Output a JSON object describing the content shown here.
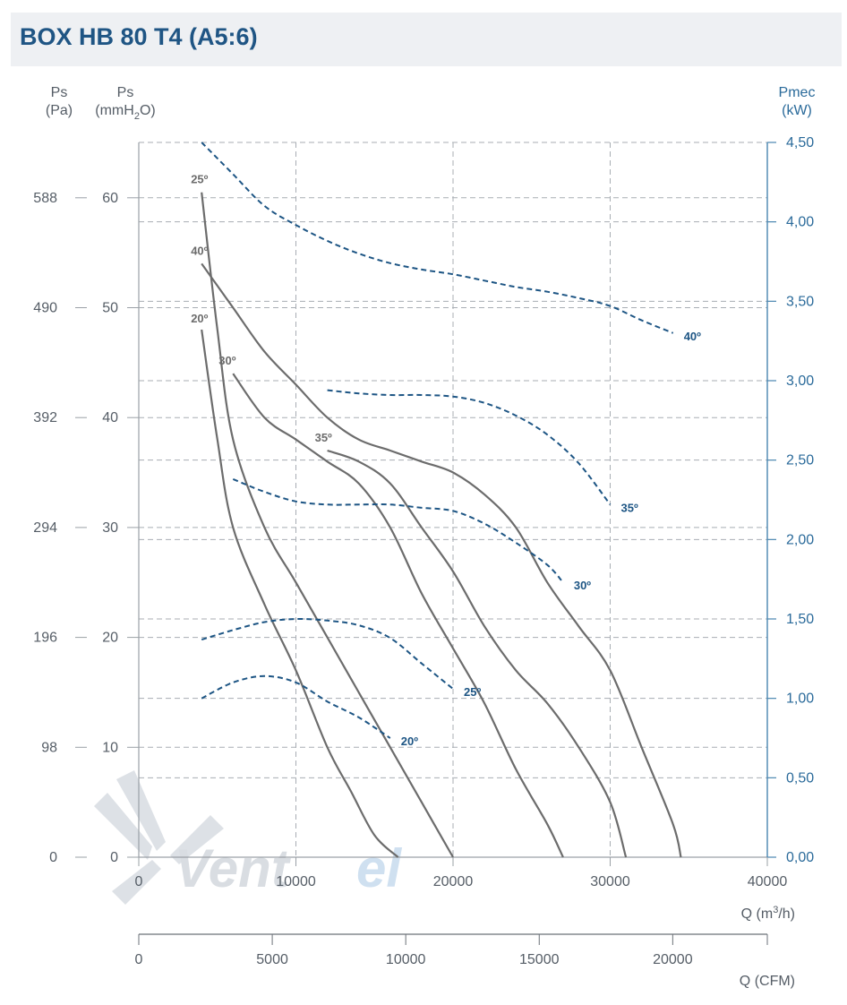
{
  "title": "BOX HB 80 T4 (A5:6)",
  "watermark": {
    "part1": "Vent",
    "part2": "el"
  },
  "colors": {
    "pressure_curve": "#6c6c6c",
    "power_curve": "#1d5584",
    "axis_right": "#4a86b0",
    "title": "#1f5584"
  },
  "axes": {
    "left_pa": {
      "label": "Ps",
      "unit": "(Pa)",
      "ticks": [
        "588",
        "490",
        "392",
        "294",
        "196",
        "98",
        "0"
      ]
    },
    "left_mmh2o": {
      "label": "Ps",
      "unit_main": "(mmH",
      "unit_sub": "2",
      "unit_end": "O)",
      "ticks": [
        "60",
        "50",
        "40",
        "30",
        "20",
        "10",
        "0"
      ]
    },
    "right_kw": {
      "label": "Pmec",
      "unit": "(kW)",
      "ticks": [
        "4,50",
        "4,00",
        "3,50",
        "3,00",
        "2,50",
        "2,00",
        "1,50",
        "1,00",
        "0,50",
        "0,00"
      ]
    },
    "bottom_m3h": {
      "label_main": "Q (m",
      "label_sup": "3",
      "label_end": "/h)",
      "ticks": [
        "0",
        "10000",
        "20000",
        "30000",
        "40000"
      ]
    },
    "bottom_cfm": {
      "label": "Q (CFM)",
      "ticks": [
        "0",
        "5000",
        "10000",
        "15000",
        "20000"
      ]
    }
  },
  "chart_data": {
    "type": "line",
    "x_unit": "m3/h",
    "xlim": [
      0,
      40000
    ],
    "ylim_left_mmh2o": [
      0,
      65
    ],
    "ylim_right_kw": [
      0,
      4.5
    ],
    "grid": true,
    "pressure_series": [
      {
        "name": "20º",
        "points": [
          [
            4000,
            48
          ],
          [
            5000,
            38
          ],
          [
            6000,
            30
          ],
          [
            8000,
            23
          ],
          [
            10000,
            17
          ],
          [
            12000,
            10
          ],
          [
            13500,
            6
          ],
          [
            15000,
            2
          ],
          [
            16500,
            0
          ]
        ]
      },
      {
        "name": "25º",
        "points": [
          [
            4000,
            60.5
          ],
          [
            5000,
            48
          ],
          [
            6000,
            38
          ],
          [
            8000,
            30
          ],
          [
            10000,
            25
          ],
          [
            12000,
            20
          ],
          [
            14000,
            15
          ],
          [
            16000,
            10
          ],
          [
            18000,
            5
          ],
          [
            20000,
            0
          ]
        ]
      },
      {
        "name": "30º",
        "points": [
          [
            6000,
            44
          ],
          [
            8000,
            40
          ],
          [
            10000,
            38
          ],
          [
            12000,
            36
          ],
          [
            14000,
            34
          ],
          [
            16000,
            30
          ],
          [
            18000,
            24
          ],
          [
            20000,
            19
          ],
          [
            22000,
            14
          ],
          [
            24000,
            8
          ],
          [
            26000,
            3
          ],
          [
            27000,
            0
          ]
        ]
      },
      {
        "name": "35º",
        "points": [
          [
            12000,
            37
          ],
          [
            14000,
            36
          ],
          [
            16000,
            34
          ],
          [
            18000,
            30
          ],
          [
            20000,
            26
          ],
          [
            22000,
            21
          ],
          [
            24000,
            17
          ],
          [
            26000,
            14
          ],
          [
            28000,
            10
          ],
          [
            30000,
            5
          ],
          [
            31000,
            0
          ]
        ]
      },
      {
        "name": "40º",
        "points": [
          [
            4000,
            54
          ],
          [
            6000,
            50
          ],
          [
            8000,
            46
          ],
          [
            10000,
            43
          ],
          [
            12000,
            40
          ],
          [
            14000,
            38
          ],
          [
            16000,
            37
          ],
          [
            18000,
            36
          ],
          [
            20000,
            35
          ],
          [
            22000,
            33
          ],
          [
            24000,
            30
          ],
          [
            26000,
            25
          ],
          [
            28000,
            21
          ],
          [
            30000,
            17
          ],
          [
            32000,
            10
          ],
          [
            34000,
            3
          ],
          [
            34500,
            0
          ]
        ]
      }
    ],
    "power_series": [
      {
        "name": "20º",
        "points": [
          [
            4000,
            1.0
          ],
          [
            6000,
            1.1
          ],
          [
            8000,
            1.14
          ],
          [
            10000,
            1.1
          ],
          [
            12000,
            0.98
          ],
          [
            14000,
            0.88
          ],
          [
            16000,
            0.75
          ]
        ]
      },
      {
        "name": "25º",
        "points": [
          [
            4000,
            1.37
          ],
          [
            6000,
            1.43
          ],
          [
            8000,
            1.48
          ],
          [
            10000,
            1.5
          ],
          [
            12000,
            1.49
          ],
          [
            14000,
            1.46
          ],
          [
            16000,
            1.38
          ],
          [
            18000,
            1.22
          ],
          [
            20000,
            1.06
          ]
        ]
      },
      {
        "name": "30º",
        "points": [
          [
            6000,
            2.38
          ],
          [
            8000,
            2.3
          ],
          [
            10000,
            2.24
          ],
          [
            12000,
            2.22
          ],
          [
            14000,
            2.22
          ],
          [
            16000,
            2.22
          ],
          [
            18000,
            2.2
          ],
          [
            20000,
            2.18
          ],
          [
            22000,
            2.1
          ],
          [
            24000,
            1.98
          ],
          [
            26000,
            1.84
          ],
          [
            27000,
            1.73
          ]
        ]
      },
      {
        "name": "35º",
        "points": [
          [
            12000,
            2.94
          ],
          [
            14000,
            2.92
          ],
          [
            16000,
            2.91
          ],
          [
            18000,
            2.91
          ],
          [
            20000,
            2.9
          ],
          [
            22000,
            2.86
          ],
          [
            24000,
            2.78
          ],
          [
            26000,
            2.66
          ],
          [
            28000,
            2.48
          ],
          [
            30000,
            2.22
          ]
        ]
      },
      {
        "name": "40º",
        "points": [
          [
            4000,
            4.5
          ],
          [
            6000,
            4.3
          ],
          [
            8000,
            4.1
          ],
          [
            10000,
            3.98
          ],
          [
            12000,
            3.88
          ],
          [
            14000,
            3.8
          ],
          [
            16000,
            3.74
          ],
          [
            18000,
            3.7
          ],
          [
            20000,
            3.67
          ],
          [
            22000,
            3.63
          ],
          [
            24000,
            3.59
          ],
          [
            26000,
            3.56
          ],
          [
            28000,
            3.52
          ],
          [
            30000,
            3.47
          ],
          [
            32000,
            3.38
          ],
          [
            34000,
            3.3
          ]
        ]
      }
    ]
  }
}
